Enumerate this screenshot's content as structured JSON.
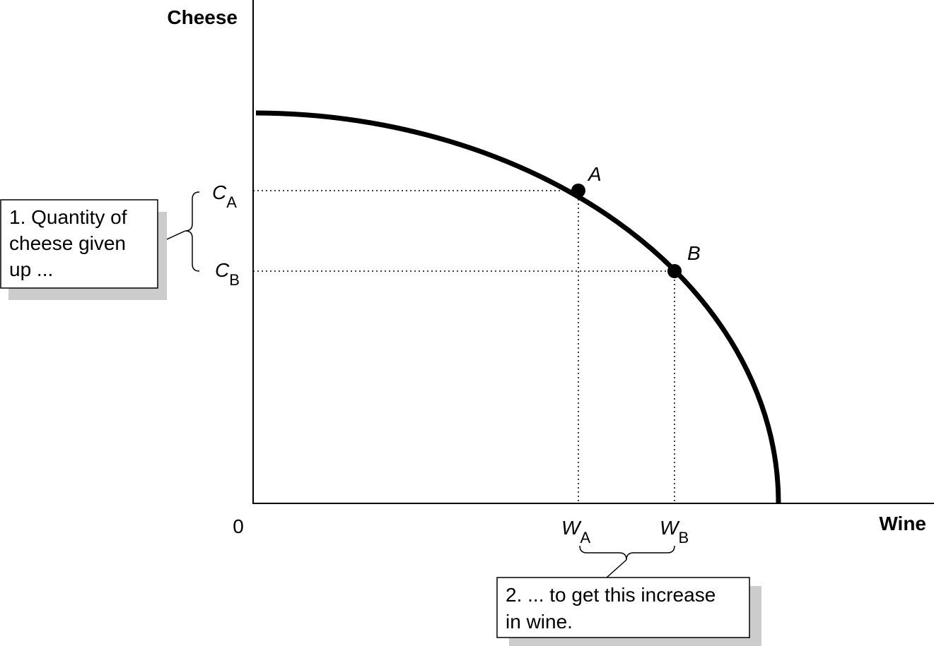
{
  "axes": {
    "y_label": "Cheese",
    "x_label": "Wine",
    "origin": "0"
  },
  "y_markers": [
    {
      "symbol": "C",
      "subscript": "A"
    },
    {
      "symbol": "C",
      "subscript": "B"
    }
  ],
  "x_markers": [
    {
      "symbol": "W",
      "subscript": "A"
    },
    {
      "symbol": "W",
      "subscript": "B"
    }
  ],
  "points": [
    {
      "label": "A"
    },
    {
      "label": "B"
    }
  ],
  "annotations": [
    {
      "lines": [
        "1.  Quantity of",
        "cheese given",
        "up ..."
      ]
    },
    {
      "lines": [
        "2. ... to get this increase",
        "in wine."
      ]
    }
  ]
}
